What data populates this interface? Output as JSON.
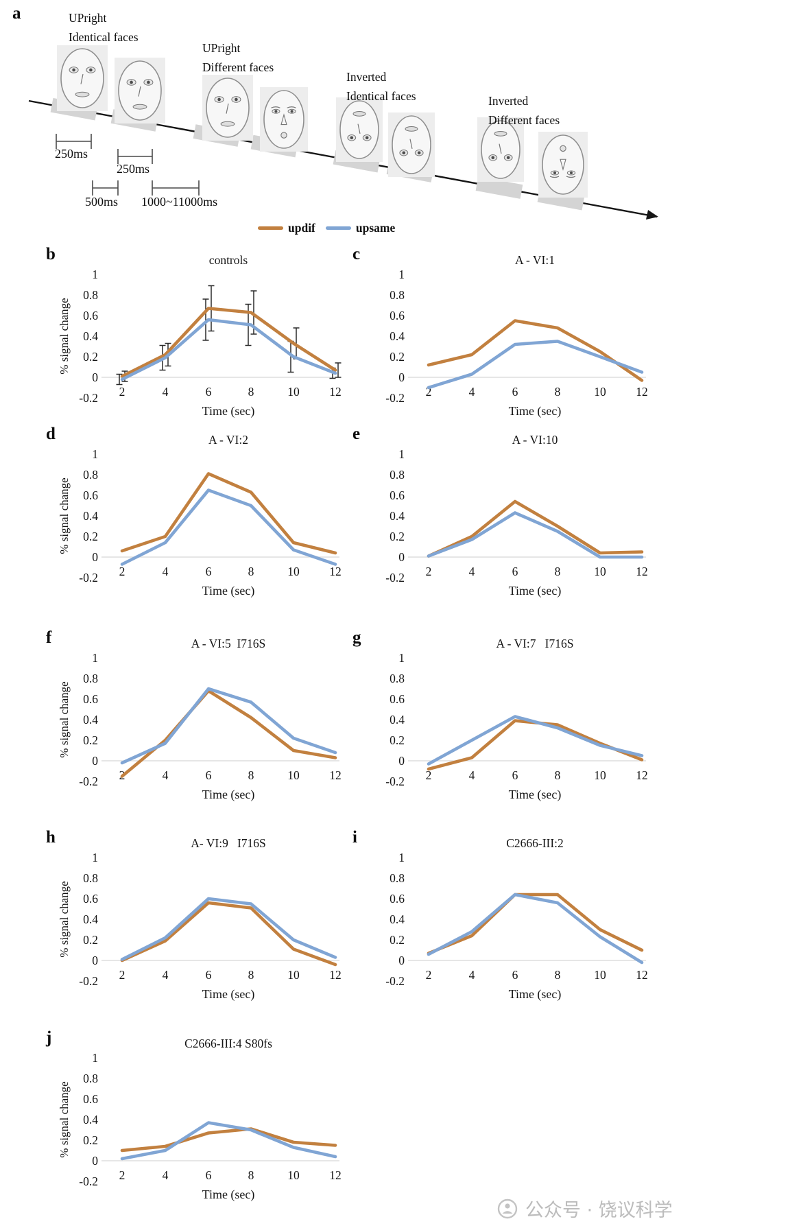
{
  "panel_a": {
    "label": "a",
    "condition_groups": [
      {
        "line1": "UPright",
        "line2": "Identical faces"
      },
      {
        "line1": "UPright",
        "line2": "Different faces"
      },
      {
        "line1": "Inverted",
        "line2": "Identical faces"
      },
      {
        "line1": "Inverted",
        "line2": "Different faces"
      }
    ],
    "timing_labels": [
      "250ms",
      "250ms",
      "500ms",
      "1000~11000ms"
    ]
  },
  "legend": {
    "items": [
      {
        "name": "updif",
        "label": "updif",
        "color": "#c2803f"
      },
      {
        "name": "upsame",
        "label": "upsame",
        "color": "#80a5d4"
      }
    ]
  },
  "chart_data": [
    {
      "panel": "b",
      "title": "controls",
      "type": "line",
      "x": [
        2,
        4,
        6,
        8,
        10,
        12
      ],
      "xlabel": "Time (sec)",
      "ylabel": "% signal change",
      "ylim": [
        -0.2,
        1
      ],
      "yticks": [
        1,
        0.8,
        0.6,
        0.4,
        0.2,
        0,
        -0.2
      ],
      "has_error_bars": true,
      "series": [
        {
          "name": "updif",
          "values": [
            0.01,
            0.22,
            0.67,
            0.63,
            0.33,
            0.07
          ],
          "errors": [
            0.05,
            0.11,
            0.22,
            0.21,
            0.15,
            0.07
          ]
        },
        {
          "name": "upsame",
          "values": [
            -0.02,
            0.19,
            0.56,
            0.51,
            0.2,
            0.04
          ],
          "errors": [
            0.05,
            0.12,
            0.2,
            0.2,
            0.15,
            0.05
          ]
        }
      ]
    },
    {
      "panel": "c",
      "title": "A - VI:1",
      "type": "line",
      "x": [
        2,
        4,
        6,
        8,
        10,
        12
      ],
      "xlabel": "Time (sec)",
      "ylim": [
        -0.2,
        1
      ],
      "yticks": [
        1,
        0.8,
        0.6,
        0.4,
        0.2,
        0,
        -0.2
      ],
      "series": [
        {
          "name": "updif",
          "values": [
            0.12,
            0.22,
            0.55,
            0.48,
            0.25,
            -0.03
          ]
        },
        {
          "name": "upsame",
          "values": [
            -0.1,
            0.03,
            0.32,
            0.35,
            0.2,
            0.05
          ]
        }
      ]
    },
    {
      "panel": "d",
      "title": "A - VI:2",
      "type": "line",
      "x": [
        2,
        4,
        6,
        8,
        10,
        12
      ],
      "xlabel": "Time (sec)",
      "ylabel": "% signal change",
      "ylim": [
        -0.2,
        1
      ],
      "yticks": [
        1,
        0.8,
        0.6,
        0.4,
        0.2,
        0,
        -0.2
      ],
      "series": [
        {
          "name": "updif",
          "values": [
            0.06,
            0.2,
            0.81,
            0.63,
            0.14,
            0.04
          ]
        },
        {
          "name": "upsame",
          "values": [
            -0.07,
            0.14,
            0.65,
            0.5,
            0.07,
            -0.07
          ]
        }
      ]
    },
    {
      "panel": "e",
      "title": "A - VI:10",
      "type": "line",
      "x": [
        2,
        4,
        6,
        8,
        10,
        12
      ],
      "xlabel": "Time (sec)",
      "ylim": [
        -0.2,
        1
      ],
      "yticks": [
        1,
        0.8,
        0.6,
        0.4,
        0.2,
        0,
        -0.2
      ],
      "series": [
        {
          "name": "updif",
          "values": [
            0.01,
            0.2,
            0.54,
            0.3,
            0.04,
            0.05
          ]
        },
        {
          "name": "upsame",
          "values": [
            0.01,
            0.17,
            0.43,
            0.25,
            0,
            0
          ]
        }
      ]
    },
    {
      "panel": "f",
      "title": "A - VI:5  I716S",
      "type": "line",
      "x": [
        2,
        4,
        6,
        8,
        10,
        12
      ],
      "xlabel": "Time (sec)",
      "ylabel": "% signal change",
      "ylim": [
        -0.2,
        1
      ],
      "yticks": [
        1,
        0.8,
        0.6,
        0.4,
        0.2,
        0,
        -0.2
      ],
      "series": [
        {
          "name": "updif",
          "values": [
            -0.15,
            0.2,
            0.68,
            0.42,
            0.1,
            0.03
          ]
        },
        {
          "name": "upsame",
          "values": [
            -0.02,
            0.17,
            0.7,
            0.57,
            0.22,
            0.08
          ]
        }
      ]
    },
    {
      "panel": "g",
      "title": "A - VI:7   I716S",
      "type": "line",
      "x": [
        2,
        4,
        6,
        8,
        10,
        12
      ],
      "xlabel": "Time (sec)",
      "ylim": [
        -0.2,
        1
      ],
      "yticks": [
        1,
        0.8,
        0.6,
        0.4,
        0.2,
        0,
        -0.2
      ],
      "series": [
        {
          "name": "updif",
          "values": [
            -0.08,
            0.03,
            0.39,
            0.35,
            0.17,
            0.01
          ]
        },
        {
          "name": "upsame",
          "values": [
            -0.03,
            0.2,
            0.43,
            0.32,
            0.15,
            0.05
          ]
        }
      ]
    },
    {
      "panel": "h",
      "title": "A- VI:9   I716S",
      "type": "line",
      "x": [
        2,
        4,
        6,
        8,
        10,
        12
      ],
      "xlabel": "Time (sec)",
      "ylabel": "% signal change",
      "ylim": [
        -0.2,
        1
      ],
      "yticks": [
        1,
        0.8,
        0.6,
        0.4,
        0.2,
        0,
        -0.2
      ],
      "series": [
        {
          "name": "updif",
          "values": [
            0,
            0.19,
            0.56,
            0.51,
            0.11,
            -0.04
          ]
        },
        {
          "name": "upsame",
          "values": [
            0.01,
            0.22,
            0.6,
            0.55,
            0.2,
            0.03
          ]
        }
      ]
    },
    {
      "panel": "i",
      "title": "C2666-III:2",
      "type": "line",
      "x": [
        2,
        4,
        6,
        8,
        10,
        12
      ],
      "xlabel": "Time (sec)",
      "ylim": [
        -0.2,
        1
      ],
      "yticks": [
        1,
        0.8,
        0.6,
        0.4,
        0.2,
        0,
        -0.2
      ],
      "series": [
        {
          "name": "updif",
          "values": [
            0.07,
            0.24,
            0.64,
            0.64,
            0.3,
            0.1
          ]
        },
        {
          "name": "upsame",
          "values": [
            0.06,
            0.28,
            0.64,
            0.56,
            0.23,
            -0.02
          ]
        }
      ]
    },
    {
      "panel": "j",
      "title": "C2666-III:4 S80fs",
      "type": "line",
      "x": [
        2,
        4,
        6,
        8,
        10,
        12
      ],
      "xlabel": "Time (sec)",
      "ylabel": "% signal change",
      "ylim": [
        -0.2,
        1
      ],
      "yticks": [
        1,
        0.8,
        0.6,
        0.4,
        0.2,
        0,
        -0.2
      ],
      "series": [
        {
          "name": "updif",
          "values": [
            0.1,
            0.14,
            0.27,
            0.31,
            0.18,
            0.15
          ]
        },
        {
          "name": "upsame",
          "values": [
            0.02,
            0.1,
            0.37,
            0.3,
            0.13,
            0.04
          ]
        }
      ]
    }
  ],
  "watermark": {
    "text": "公众号 · 饶议科学"
  }
}
